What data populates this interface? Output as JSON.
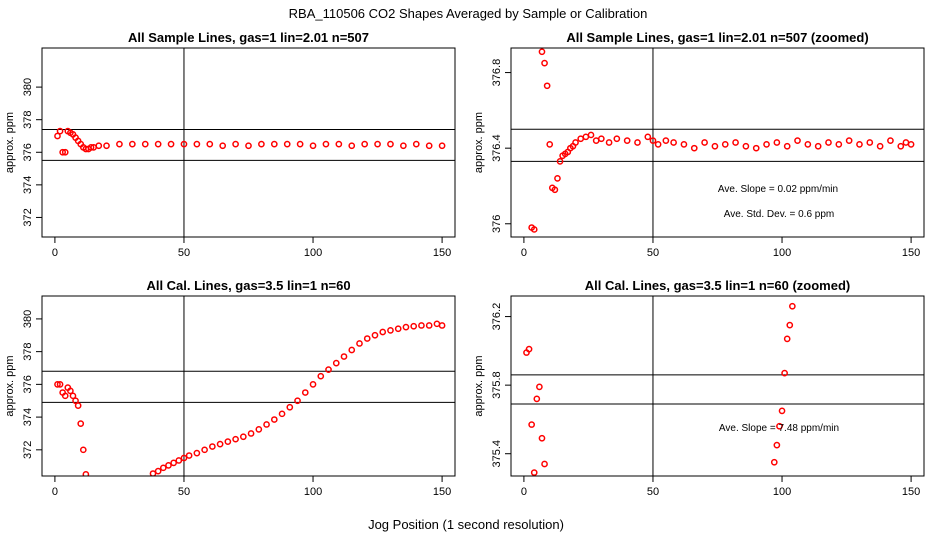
{
  "figure": {
    "title": "RBA_110506  CO2 Shapes Averaged by Sample or Calibration",
    "xlabel": "Jog Position (1 second resolution)"
  },
  "chart_data": [
    {
      "type": "scatter",
      "id": "p1",
      "title": "All Sample Lines, gas=1 lin=2.01 n=507",
      "ylabel": "approx. ppm",
      "xlim": [
        -5,
        155
      ],
      "ylim": [
        370.8,
        382.4
      ],
      "xticks": [
        0,
        50,
        100,
        150
      ],
      "yticks": [
        372,
        374,
        376,
        378,
        380
      ],
      "vline": 50,
      "hlines": [
        375.5,
        377.4
      ],
      "color": "#ff0000",
      "x": [
        1,
        2,
        3,
        4,
        5,
        6,
        7,
        8,
        9,
        10,
        11,
        12,
        13,
        14,
        15,
        17,
        20,
        25,
        30,
        35,
        40,
        45,
        50,
        55,
        60,
        65,
        70,
        75,
        80,
        85,
        90,
        95,
        100,
        105,
        110,
        115,
        120,
        125,
        130,
        135,
        140,
        145,
        150
      ],
      "y": [
        377.0,
        377.3,
        376.0,
        376.0,
        377.3,
        377.2,
        377.1,
        376.9,
        376.7,
        376.5,
        376.3,
        376.2,
        376.2,
        376.3,
        376.3,
        376.4,
        376.4,
        376.5,
        376.5,
        376.5,
        376.5,
        376.5,
        376.5,
        376.5,
        376.5,
        376.4,
        376.5,
        376.4,
        376.5,
        376.5,
        376.5,
        376.5,
        376.4,
        376.5,
        376.5,
        376.4,
        376.5,
        376.5,
        376.5,
        376.4,
        376.5,
        376.4,
        376.4
      ],
      "annotations": []
    },
    {
      "type": "scatter",
      "id": "p2",
      "title": "All Sample Lines, gas=1 lin=2.01 n=507 (zoomed)",
      "ylabel": "approx. ppm",
      "xlim": [
        -5,
        155
      ],
      "ylim": [
        375.93,
        376.93
      ],
      "xticks": [
        0,
        50,
        100,
        150
      ],
      "yticks": [
        376.0,
        376.4,
        376.8
      ],
      "vline": 50,
      "hlines": [
        376.33,
        376.5
      ],
      "color": "#ff0000",
      "x": [
        3,
        4,
        7,
        8,
        9,
        10,
        11,
        12,
        13,
        14,
        15,
        16,
        17,
        18,
        19,
        20,
        22,
        24,
        26,
        28,
        30,
        33,
        36,
        40,
        44,
        48,
        50,
        52,
        55,
        58,
        62,
        66,
        70,
        74,
        78,
        82,
        86,
        90,
        94,
        98,
        102,
        106,
        110,
        114,
        118,
        122,
        126,
        130,
        134,
        138,
        142,
        146,
        148,
        150
      ],
      "y": [
        375.98,
        375.97,
        376.91,
        376.85,
        376.73,
        376.42,
        376.19,
        376.18,
        376.24,
        376.33,
        376.36,
        376.37,
        376.38,
        376.4,
        376.41,
        376.43,
        376.45,
        376.46,
        376.47,
        376.44,
        376.45,
        376.43,
        376.45,
        376.44,
        376.43,
        376.46,
        376.44,
        376.42,
        376.44,
        376.43,
        376.42,
        376.4,
        376.43,
        376.41,
        376.42,
        376.43,
        376.41,
        376.4,
        376.42,
        376.43,
        376.41,
        376.44,
        376.42,
        376.41,
        376.43,
        376.42,
        376.44,
        376.42,
        376.43,
        376.41,
        376.44,
        376.41,
        376.43,
        376.42
      ],
      "annotations": [
        "Ave. Slope =  0.02  ppm/min",
        "Ave. Std. Dev. =  0.6  ppm"
      ]
    },
    {
      "type": "scatter",
      "id": "p3",
      "title": "All Cal. Lines, gas=3.5 lin=1 n=60",
      "ylabel": "approx. ppm",
      "xlim": [
        -5,
        155
      ],
      "ylim": [
        370.4,
        381.4
      ],
      "xticks": [
        0,
        50,
        100,
        150
      ],
      "yticks": [
        372,
        374,
        376,
        378,
        380
      ],
      "vline": 50,
      "hlines": [
        374.9,
        376.8
      ],
      "color": "#ff0000",
      "x": [
        1,
        2,
        3,
        4,
        5,
        6,
        7,
        8,
        9,
        10,
        11,
        12,
        38,
        40,
        42,
        44,
        46,
        48,
        50,
        52,
        55,
        58,
        61,
        64,
        67,
        70,
        73,
        76,
        79,
        82,
        85,
        88,
        91,
        94,
        97,
        100,
        103,
        106,
        109,
        112,
        115,
        118,
        121,
        124,
        127,
        130,
        133,
        136,
        139,
        142,
        145,
        148,
        150
      ],
      "y": [
        376.0,
        376.0,
        375.5,
        375.3,
        375.8,
        375.6,
        375.3,
        375.0,
        374.7,
        373.6,
        372.0,
        370.5,
        370.55,
        370.7,
        370.9,
        371.05,
        371.2,
        371.35,
        371.5,
        371.65,
        371.8,
        372.0,
        372.2,
        372.35,
        372.5,
        372.65,
        372.8,
        373.0,
        373.25,
        373.55,
        373.85,
        374.2,
        374.6,
        375.0,
        375.5,
        376.0,
        376.5,
        376.9,
        377.3,
        377.7,
        378.1,
        378.5,
        378.8,
        379.0,
        379.2,
        379.3,
        379.4,
        379.5,
        379.55,
        379.6,
        379.6,
        379.7,
        379.6
      ],
      "annotations": []
    },
    {
      "type": "scatter",
      "id": "p4",
      "title": "All Cal. Lines, gas=3.5 lin=1 n=60 (zoomed)",
      "ylabel": "approx. ppm",
      "xlim": [
        -5,
        155
      ],
      "ylim": [
        375.27,
        376.32
      ],
      "xticks": [
        0,
        50,
        100,
        150
      ],
      "yticks": [
        375.4,
        375.8,
        376.2
      ],
      "vline": 50,
      "hlines": [
        375.86,
        375.69
      ],
      "color": "#ff0000",
      "x": [
        1,
        2,
        3,
        4,
        5,
        6,
        7,
        8,
        97,
        98,
        99,
        100,
        101,
        102,
        103,
        104
      ],
      "y": [
        375.99,
        376.01,
        375.57,
        375.29,
        375.72,
        375.79,
        375.49,
        375.34,
        375.35,
        375.45,
        375.56,
        375.65,
        375.87,
        376.07,
        376.15,
        376.26
      ],
      "annotations": [
        "Ave. Slope = 7.48  ppm/min"
      ]
    }
  ]
}
